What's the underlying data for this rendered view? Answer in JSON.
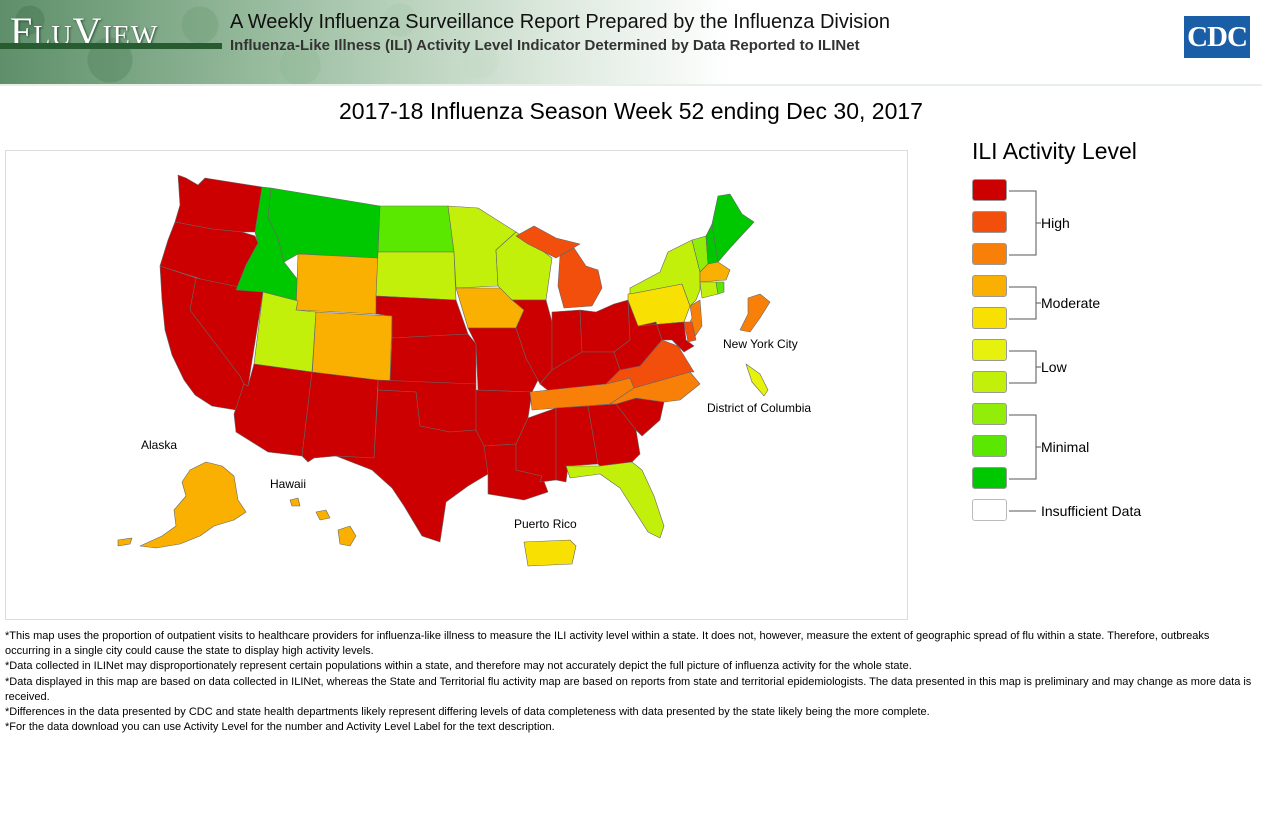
{
  "header": {
    "logo_text": "FluView",
    "title": "A Weekly Influenza Surveillance Report Prepared by the Influenza Division",
    "subtitle": "Influenza-Like Illness (ILI) Activity Level Indicator Determined by Data Reported to ILINet",
    "agency_logo_text": "CDC"
  },
  "map": {
    "title": "2017-18 Influenza Season Week 52 ending Dec 30, 2017",
    "labels": {
      "alaska": "Alaska",
      "hawaii": "Hawaii",
      "puerto_rico": "Puerto Rico",
      "new_york_city": "New York City",
      "district_of_columbia": "District of Columbia"
    },
    "region_levels": {
      "Washington": 10,
      "Oregon": 10,
      "California": 10,
      "Nevada": 10,
      "Arizona": 10,
      "New Mexico": 10,
      "Texas": 10,
      "Oklahoma": 10,
      "Kansas": 10,
      "Nebraska": 10,
      "Missouri": 10,
      "Arkansas": 10,
      "Louisiana": 10,
      "Mississippi": 10,
      "Alabama": 10,
      "Georgia": 10,
      "South Carolina": 10,
      "Illinois": 10,
      "Indiana": 10,
      "Ohio": 10,
      "Kentucky": 10,
      "West Virginia": 10,
      "Maryland": 10,
      "Michigan": 9,
      "Virginia": 9,
      "Delaware": 9,
      "New York City": 8,
      "Tennessee": 8,
      "North Carolina": 8,
      "New Jersey": 8,
      "Wyoming": 7,
      "Colorado": 7,
      "Iowa": 7,
      "Massachusetts": 7,
      "Alaska": 7,
      "Hawaii": 7,
      "Pennsylvania": 6,
      "Puerto Rico": 6,
      "District of Columbia": 5,
      "Utah": 4,
      "South Dakota": 4,
      "Minnesota": 4,
      "Wisconsin": 4,
      "New York": 4,
      "Florida": 4,
      "Connecticut": 4,
      "Vermont": 3,
      "North Dakota": 2,
      "Rhode Island": 2,
      "Idaho": 1,
      "Montana": 1,
      "Maine": 1,
      "New Hampshire": 1
    }
  },
  "legend": {
    "title": "ILI Activity Level",
    "levels": [
      {
        "level": 10,
        "color": "#cc0000"
      },
      {
        "level": 9,
        "color": "#f24e0c"
      },
      {
        "level": 8,
        "color": "#f98008"
      },
      {
        "level": 7,
        "color": "#fab000"
      },
      {
        "level": 6,
        "color": "#f8e002"
      },
      {
        "level": 5,
        "color": "#e6f20e"
      },
      {
        "level": 4,
        "color": "#c2f00a"
      },
      {
        "level": 3,
        "color": "#92ee08"
      },
      {
        "level": 2,
        "color": "#5ae800"
      },
      {
        "level": 1,
        "color": "#00c800"
      }
    ],
    "insufficient_color": "#ffffff",
    "groups": {
      "high": "High",
      "moderate": "Moderate",
      "low": "Low",
      "minimal": "Minimal",
      "insufficient": "Insufficient Data"
    }
  },
  "notes": [
    "*This map uses the proportion of outpatient visits to healthcare providers for influenza-like illness to measure the ILI activity level within a state. It does not, however, measure the extent of geographic spread of flu within a state. Therefore, outbreaks occurring in a single city could cause the state to display high activity levels.",
    "*Data collected in ILINet may disproportionately represent certain populations within a state, and therefore may not accurately depict the full picture of influenza activity for the whole state.",
    "*Data displayed in this map are based on data collected in ILINet, whereas the State and Territorial flu activity map are based on reports from state and territorial epidemiologists. The data presented in this map is preliminary and may change as more data is received.",
    "*Differences in the data presented by CDC and state health departments likely represent differing levels of data completeness with data presented by the state likely being the more complete.",
    "*For the data download you can use Activity Level for the number and Activity Level Label for the text description."
  ]
}
